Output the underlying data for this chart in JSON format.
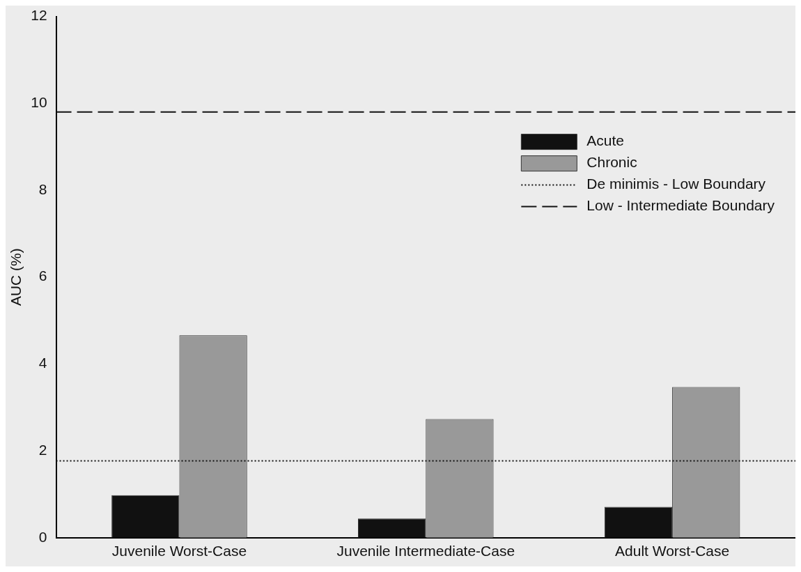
{
  "chart_data": {
    "type": "bar",
    "ylabel": "AUC (%)",
    "categories": [
      "Juvenile Worst-Case",
      "Juvenile Intermediate-Case",
      "Adult Worst-Case"
    ],
    "series": [
      {
        "name": "Acute",
        "color": "#111111",
        "values": [
          0.98,
          0.44,
          0.71
        ]
      },
      {
        "name": "Chronic",
        "color": "#999999",
        "values": [
          4.66,
          2.73,
          3.47
        ]
      }
    ],
    "ylim": [
      0,
      12
    ],
    "yticks": [
      0,
      2,
      4,
      6,
      8,
      10,
      12
    ],
    "grid": false,
    "legend": "top right",
    "ref_lines": [
      {
        "axis": "y",
        "value": 1.77,
        "label": "De minimis - Low Boundary",
        "line_style": "dotted",
        "color": "#111111"
      },
      {
        "axis": "y",
        "value": 9.8,
        "label": "Low - Intermediate Boundary",
        "line_style": "dashed",
        "color": "#111111"
      }
    ]
  }
}
